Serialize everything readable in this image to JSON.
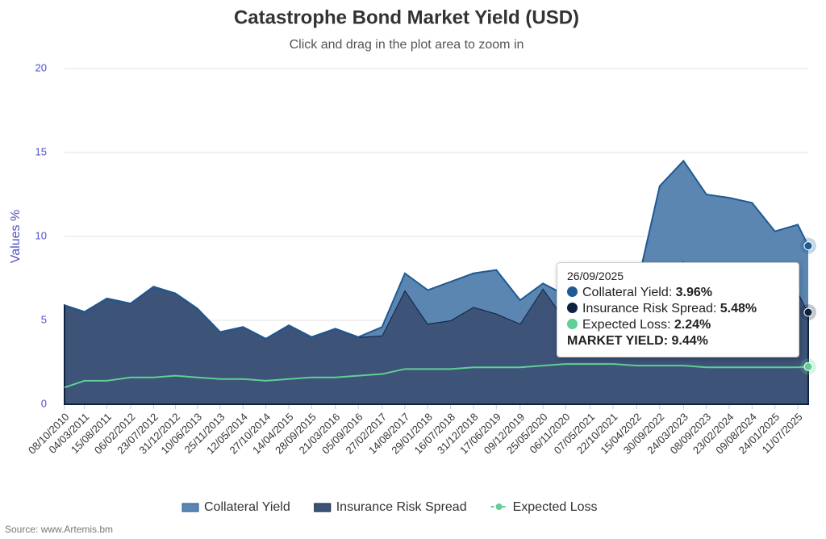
{
  "chart_data": {
    "type": "stacked-area",
    "title": "Catastrophe Bond Market Yield (USD)",
    "subtitle": "Click and drag in the plot area to zoom in",
    "y_label": "Values %",
    "source": "Source: www.Artemis.bm",
    "x": [
      "08/10/2010",
      "04/03/2011",
      "15/08/2011",
      "06/02/2012",
      "23/07/2012",
      "31/12/2012",
      "10/06/2013",
      "25/11/2013",
      "12/05/2014",
      "27/10/2014",
      "14/04/2015",
      "28/09/2015",
      "21/03/2016",
      "05/09/2016",
      "27/02/2017",
      "14/08/2017",
      "29/01/2018",
      "16/07/2018",
      "31/12/2018",
      "17/06/2019",
      "09/12/2019",
      "25/05/2020",
      "06/11/2020",
      "07/05/2021",
      "22/10/2021",
      "15/04/2022",
      "30/09/2022",
      "24/03/2023",
      "08/09/2023",
      "23/02/2024",
      "09/08/2024",
      "24/01/2025",
      "11/07/2025",
      "26/09/2025"
    ],
    "xticks": [
      "08/10/2010",
      "04/03/2011",
      "15/08/2011",
      "06/02/2012",
      "23/07/2012",
      "31/12/2012",
      "10/06/2013",
      "25/11/2013",
      "12/05/2014",
      "27/10/2014",
      "14/04/2015",
      "28/09/2015",
      "21/03/2016",
      "05/09/2016",
      "27/02/2017",
      "14/08/2017",
      "29/01/2018",
      "16/07/2018",
      "31/12/2018",
      "17/06/2019",
      "09/12/2019",
      "25/05/2020",
      "06/11/2020",
      "07/05/2021",
      "22/10/2021",
      "15/04/2022",
      "30/09/2022",
      "24/03/2023",
      "08/09/2023",
      "23/02/2024",
      "09/08/2024",
      "24/01/2025",
      "11/07/2025"
    ],
    "ylim": [
      0,
      20
    ],
    "yticks": [
      0,
      5,
      10,
      15,
      20
    ],
    "grid": true,
    "series": [
      {
        "name": "Insurance Risk Spread",
        "color": "#0d2241",
        "fill": "#3d5378",
        "values": [
          5.9,
          5.5,
          6.3,
          6.0,
          7.0,
          6.6,
          5.7,
          4.3,
          4.6,
          3.9,
          4.7,
          4.0,
          4.5,
          4.0,
          4.1,
          6.8,
          4.8,
          5.0,
          5.8,
          5.4,
          4.8,
          6.9,
          5.0,
          5.5,
          5.5,
          6.0,
          8.0,
          8.5,
          7.0,
          6.5,
          6.5,
          6.0,
          6.7,
          5.48
        ]
      },
      {
        "name": "Collateral Yield",
        "color": "#1f5a94",
        "fill": "#5b86b1",
        "values": [
          0,
          0,
          0,
          0,
          0,
          0,
          0,
          0,
          0,
          0,
          0,
          0,
          0,
          0,
          0.5,
          1.0,
          2.0,
          2.3,
          2.0,
          2.6,
          1.4,
          0.3,
          1.5,
          1.0,
          1.0,
          1.0,
          5.0,
          6.0,
          5.5,
          5.8,
          5.5,
          4.3,
          4.0,
          3.96
        ]
      },
      {
        "name": "Expected Loss",
        "color": "#5fcf95",
        "line": true,
        "values": [
          1.0,
          1.4,
          1.4,
          1.6,
          1.6,
          1.7,
          1.6,
          1.5,
          1.5,
          1.4,
          1.5,
          1.6,
          1.6,
          1.7,
          1.8,
          2.1,
          2.1,
          2.1,
          2.2,
          2.2,
          2.2,
          2.3,
          2.4,
          2.4,
          2.4,
          2.3,
          2.3,
          2.3,
          2.2,
          2.2,
          2.2,
          2.2,
          2.2,
          2.24
        ]
      }
    ],
    "tooltip": {
      "date": "26/09/2025",
      "items": [
        {
          "label": "Collateral Yield: ",
          "value": "3.96%",
          "color": "#1f5a94"
        },
        {
          "label": "Insurance Risk Spread: ",
          "value": "5.48%",
          "color": "#0d2241"
        },
        {
          "label": "Expected Loss: ",
          "value": "2.24%",
          "color": "#5fcf95"
        }
      ],
      "total_label": "MARKET YIELD: ",
      "total": "9.44%"
    }
  }
}
